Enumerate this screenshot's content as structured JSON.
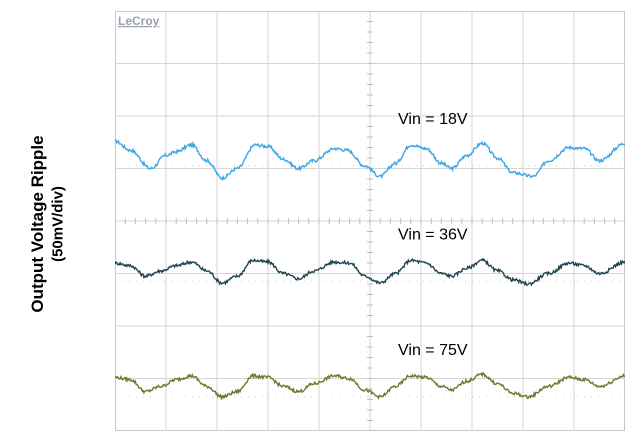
{
  "ylabel_line1": "Output Voltage Ripple",
  "ylabel_line2": "(50mV/div)",
  "brand": "LeCroy",
  "chart_data": {
    "type": "line",
    "ylabel": "Output Voltage Ripple (50mV/div)",
    "x_divisions": 10,
    "y_divisions": 8,
    "volts_per_div": 0.05,
    "grid": true,
    "series": [
      {
        "name": "Vin = 18V",
        "color": "#3aa6e6",
        "offset_div": 5.3,
        "points_div": [
          [
            0,
            0.22
          ],
          [
            0.3,
            0.05
          ],
          [
            0.7,
            -0.3
          ],
          [
            1.0,
            -0.05
          ],
          [
            1.2,
            0.02
          ],
          [
            1.5,
            0.15
          ],
          [
            1.8,
            -0.15
          ],
          [
            2.1,
            -0.48
          ],
          [
            2.4,
            -0.3
          ],
          [
            2.75,
            0.15
          ],
          [
            3.0,
            0.12
          ],
          [
            3.3,
            -0.12
          ],
          [
            3.6,
            -0.3
          ],
          [
            3.9,
            -0.15
          ],
          [
            4.3,
            0.08
          ],
          [
            4.55,
            0.05
          ],
          [
            4.9,
            -0.25
          ],
          [
            5.2,
            -0.45
          ],
          [
            5.5,
            -0.2
          ],
          [
            5.8,
            0.15
          ],
          [
            6.1,
            0.08
          ],
          [
            6.4,
            -0.2
          ],
          [
            6.6,
            -0.3
          ],
          [
            6.9,
            -0.05
          ],
          [
            7.2,
            0.18
          ],
          [
            7.5,
            -0.1
          ],
          [
            7.8,
            -0.38
          ],
          [
            8.2,
            -0.45
          ],
          [
            8.5,
            -0.15
          ],
          [
            8.9,
            0.1
          ],
          [
            9.2,
            0.08
          ],
          [
            9.5,
            -0.15
          ],
          [
            10,
            0.18
          ]
        ]
      },
      {
        "name": "Vin = 36V",
        "color": "#1f4450",
        "offset_div": 3.1,
        "points_div": [
          [
            0,
            0.1
          ],
          [
            0.3,
            0.05
          ],
          [
            0.6,
            -0.15
          ],
          [
            0.9,
            -0.05
          ],
          [
            1.2,
            0.05
          ],
          [
            1.5,
            0.12
          ],
          [
            1.8,
            -0.05
          ],
          [
            2.1,
            -0.28
          ],
          [
            2.4,
            -0.15
          ],
          [
            2.7,
            0.15
          ],
          [
            3.0,
            0.12
          ],
          [
            3.3,
            -0.1
          ],
          [
            3.6,
            -0.2
          ],
          [
            3.9,
            -0.05
          ],
          [
            4.3,
            0.12
          ],
          [
            4.6,
            0.1
          ],
          [
            4.9,
            -0.15
          ],
          [
            5.2,
            -0.28
          ],
          [
            5.5,
            -0.1
          ],
          [
            5.8,
            0.15
          ],
          [
            6.1,
            0.1
          ],
          [
            6.4,
            -0.1
          ],
          [
            6.6,
            -0.15
          ],
          [
            6.9,
            0.0
          ],
          [
            7.2,
            0.15
          ],
          [
            7.5,
            -0.05
          ],
          [
            7.8,
            -0.22
          ],
          [
            8.1,
            -0.3
          ],
          [
            8.5,
            -0.1
          ],
          [
            8.9,
            0.1
          ],
          [
            9.2,
            0.05
          ],
          [
            9.5,
            -0.1
          ],
          [
            10,
            0.12
          ]
        ]
      },
      {
        "name": "Vin = 75V",
        "color": "#77752d",
        "offset_div": 0.9,
        "points_div": [
          [
            0,
            0.12
          ],
          [
            0.3,
            0.08
          ],
          [
            0.6,
            -0.15
          ],
          [
            0.9,
            -0.05
          ],
          [
            1.2,
            0.08
          ],
          [
            1.5,
            0.15
          ],
          [
            1.8,
            -0.05
          ],
          [
            2.1,
            -0.25
          ],
          [
            2.4,
            -0.15
          ],
          [
            2.7,
            0.15
          ],
          [
            3.0,
            0.12
          ],
          [
            3.3,
            -0.05
          ],
          [
            3.6,
            -0.15
          ],
          [
            3.9,
            0.0
          ],
          [
            4.3,
            0.15
          ],
          [
            4.6,
            0.1
          ],
          [
            4.9,
            -0.12
          ],
          [
            5.2,
            -0.25
          ],
          [
            5.5,
            -0.05
          ],
          [
            5.8,
            0.15
          ],
          [
            6.1,
            0.12
          ],
          [
            6.4,
            -0.05
          ],
          [
            6.6,
            -0.12
          ],
          [
            6.9,
            0.05
          ],
          [
            7.2,
            0.18
          ],
          [
            7.5,
            0.0
          ],
          [
            7.8,
            -0.18
          ],
          [
            8.1,
            -0.25
          ],
          [
            8.5,
            -0.05
          ],
          [
            8.9,
            0.12
          ],
          [
            9.2,
            0.08
          ],
          [
            9.5,
            -0.05
          ],
          [
            10,
            0.15
          ]
        ]
      }
    ]
  }
}
